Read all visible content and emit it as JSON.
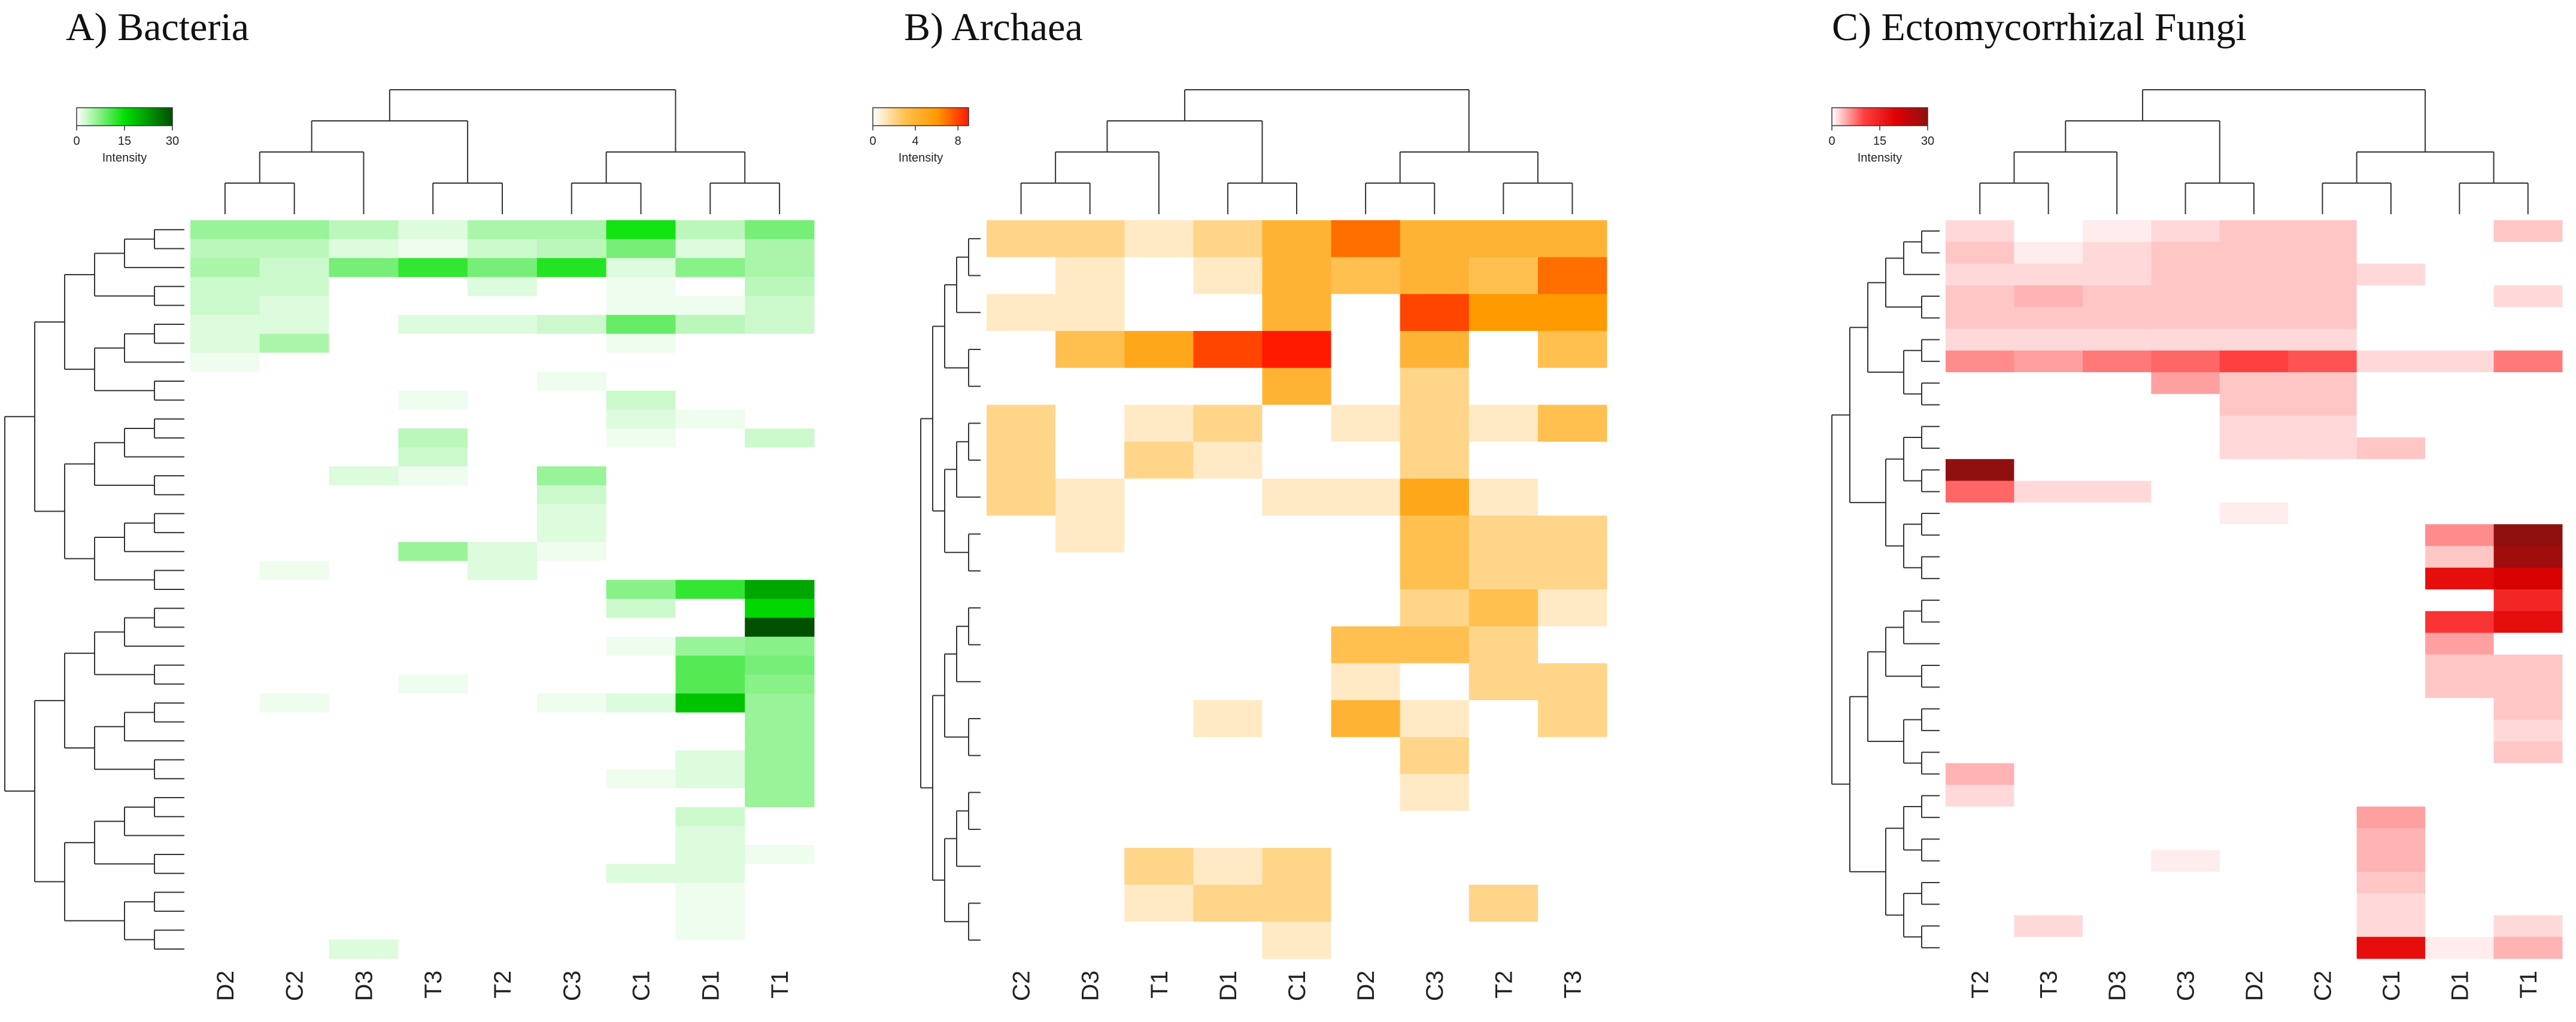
{
  "panels": [
    {
      "id": "bacteria",
      "title": "A) Bacteria",
      "legend": {
        "title": "Intensity",
        "ticks": [
          "0",
          "15",
          "30"
        ],
        "max": 30,
        "colors": [
          "#ffffff",
          "#00e000",
          "#005000"
        ]
      },
      "columns": [
        "D2",
        "C2",
        "D3",
        "T3",
        "T2",
        "C3",
        "C1",
        "D1",
        "T1"
      ]
    },
    {
      "id": "archaea",
      "title": "B) Archaea",
      "legend": {
        "title": "Intensity",
        "ticks": [
          "0",
          "4",
          "8"
        ],
        "max": 9,
        "colors": [
          "#ffffff",
          "#ffc050",
          "#ff9a00",
          "#ff1a00"
        ]
      },
      "columns": [
        "C2",
        "D3",
        "T1",
        "D1",
        "C1",
        "D2",
        "C3",
        "T2",
        "T3"
      ]
    },
    {
      "id": "ecto",
      "title": "C) Ectomycorrhizal Fungi",
      "legend": {
        "title": "Intensity",
        "ticks": [
          "0",
          "15",
          "30"
        ],
        "max": 30,
        "colors": [
          "#ffffff",
          "#ff4040",
          "#e00000",
          "#901010"
        ]
      },
      "columns": [
        "T2",
        "T3",
        "D3",
        "C3",
        "D2",
        "C2",
        "C1",
        "D1",
        "T1"
      ]
    }
  ],
  "chart_data": [
    {
      "type": "heatmap",
      "title": "A) Bacteria",
      "columns": [
        "D2",
        "C2",
        "D3",
        "T3",
        "T2",
        "C3",
        "C1",
        "D1",
        "T1"
      ],
      "legend_title": "Intensity",
      "color_scale": {
        "min": 0,
        "max": 30,
        "ticks": [
          0,
          15,
          30
        ]
      },
      "values": [
        [
          6,
          6,
          4,
          2,
          5,
          5,
          14,
          4,
          8
        ],
        [
          4,
          4,
          2,
          1,
          3,
          4,
          8,
          2,
          5
        ],
        [
          5,
          3,
          8,
          12,
          8,
          13,
          2,
          7,
          5
        ],
        [
          3,
          3,
          0,
          0,
          2,
          0,
          1,
          0,
          4
        ],
        [
          3,
          2,
          0,
          0,
          0,
          0,
          1,
          1,
          3
        ],
        [
          2,
          2,
          0,
          2,
          2,
          3,
          9,
          4,
          3
        ],
        [
          2,
          5,
          0,
          0,
          0,
          0,
          1,
          0,
          0
        ],
        [
          1,
          0,
          0,
          0,
          0,
          0,
          0,
          0,
          0
        ],
        [
          0,
          0,
          0,
          0,
          0,
          1,
          0,
          0,
          0
        ],
        [
          0,
          0,
          0,
          1,
          0,
          0,
          3,
          0,
          0
        ],
        [
          0,
          0,
          0,
          0,
          0,
          0,
          2,
          1,
          0
        ],
        [
          0,
          0,
          0,
          4,
          0,
          0,
          1,
          0,
          3
        ],
        [
          0,
          0,
          0,
          3,
          0,
          0,
          0,
          0,
          0
        ],
        [
          0,
          0,
          2,
          1,
          0,
          6,
          0,
          0,
          0
        ],
        [
          0,
          0,
          0,
          0,
          0,
          3,
          0,
          0,
          0
        ],
        [
          0,
          0,
          0,
          0,
          0,
          2,
          0,
          0,
          0
        ],
        [
          0,
          0,
          0,
          0,
          0,
          2,
          0,
          0,
          0
        ],
        [
          0,
          0,
          0,
          6,
          2,
          1,
          0,
          0,
          0
        ],
        [
          0,
          1,
          0,
          0,
          2,
          0,
          0,
          0,
          0
        ],
        [
          0,
          0,
          0,
          0,
          0,
          0,
          7,
          12,
          21
        ],
        [
          0,
          0,
          0,
          0,
          0,
          0,
          3,
          0,
          16
        ],
        [
          0,
          0,
          0,
          0,
          0,
          0,
          0,
          0,
          32
        ],
        [
          0,
          0,
          0,
          0,
          0,
          0,
          1,
          6,
          7
        ],
        [
          0,
          0,
          0,
          0,
          0,
          0,
          0,
          10,
          8
        ],
        [
          0,
          0,
          0,
          1,
          0,
          0,
          0,
          10,
          7
        ],
        [
          0,
          1,
          0,
          0,
          0,
          1,
          2,
          18,
          6
        ],
        [
          0,
          0,
          0,
          0,
          0,
          0,
          0,
          0,
          6
        ],
        [
          0,
          0,
          0,
          0,
          0,
          0,
          0,
          0,
          6
        ],
        [
          0,
          0,
          0,
          0,
          0,
          0,
          0,
          2,
          6
        ],
        [
          0,
          0,
          0,
          0,
          0,
          0,
          1,
          2,
          6
        ],
        [
          0,
          0,
          0,
          0,
          0,
          0,
          0,
          0,
          6
        ],
        [
          0,
          0,
          0,
          0,
          0,
          0,
          0,
          3,
          0
        ],
        [
          0,
          0,
          0,
          0,
          0,
          0,
          0,
          2,
          0
        ],
        [
          0,
          0,
          0,
          0,
          0,
          0,
          0,
          2,
          1
        ],
        [
          0,
          0,
          0,
          0,
          0,
          0,
          2,
          2,
          0
        ],
        [
          0,
          0,
          0,
          0,
          0,
          0,
          0,
          1,
          0
        ],
        [
          0,
          0,
          0,
          0,
          0,
          0,
          0,
          1,
          0
        ],
        [
          0,
          0,
          0,
          0,
          0,
          0,
          0,
          1,
          0
        ],
        [
          0,
          0,
          2,
          0,
          0,
          0,
          0,
          0,
          0
        ]
      ]
    },
    {
      "type": "heatmap",
      "title": "B) Archaea",
      "columns": [
        "C2",
        "D3",
        "T1",
        "D1",
        "C1",
        "D2",
        "C3",
        "T2",
        "T3"
      ],
      "legend_title": "Intensity",
      "color_scale": {
        "min": 0,
        "max": 9,
        "ticks": [
          0,
          4,
          8
        ]
      },
      "values": [
        [
          2,
          2,
          1,
          2,
          4,
          7,
          4,
          4,
          4
        ],
        [
          0,
          1,
          0,
          1,
          4,
          3,
          4,
          3,
          7
        ],
        [
          1,
          1,
          0,
          0,
          4,
          0,
          8,
          6,
          6
        ],
        [
          0,
          3,
          5,
          8,
          9,
          0,
          4,
          0,
          3
        ],
        [
          0,
          0,
          0,
          0,
          4,
          0,
          2,
          0,
          0
        ],
        [
          2,
          0,
          1,
          2,
          0,
          1,
          2,
          1,
          3
        ],
        [
          2,
          0,
          2,
          1,
          0,
          0,
          2,
          0,
          0
        ],
        [
          2,
          1,
          0,
          0,
          1,
          1,
          5,
          1,
          0
        ],
        [
          0,
          1,
          0,
          0,
          0,
          0,
          3,
          2,
          2
        ],
        [
          0,
          0,
          0,
          0,
          0,
          0,
          3,
          2,
          2
        ],
        [
          0,
          0,
          0,
          0,
          0,
          0,
          2,
          3,
          1
        ],
        [
          0,
          0,
          0,
          0,
          0,
          3,
          3,
          2,
          0
        ],
        [
          0,
          0,
          0,
          0,
          0,
          1,
          0,
          2,
          2
        ],
        [
          0,
          0,
          0,
          1,
          0,
          4,
          1,
          0,
          2
        ],
        [
          0,
          0,
          0,
          0,
          0,
          0,
          2,
          0,
          0
        ],
        [
          0,
          0,
          0,
          0,
          0,
          0,
          1,
          0,
          0
        ],
        [
          0,
          0,
          0,
          0,
          0,
          0,
          0,
          0,
          0
        ],
        [
          0,
          0,
          2,
          1,
          2,
          0,
          0,
          0,
          0
        ],
        [
          0,
          0,
          1,
          2,
          2,
          0,
          0,
          2,
          0
        ],
        [
          0,
          0,
          0,
          0,
          1,
          0,
          0,
          0,
          0
        ]
      ]
    },
    {
      "type": "heatmap",
      "title": "C) Ectomycorrhizal Fungi",
      "columns": [
        "T2",
        "T3",
        "D3",
        "C3",
        "D2",
        "C2",
        "C1",
        "D1",
        "T1"
      ],
      "legend_title": "Intensity",
      "color_scale": {
        "min": 0,
        "max": 30,
        "ticks": [
          0,
          15,
          30
        ]
      },
      "values": [
        [
          2,
          0,
          1,
          2,
          3,
          3,
          0,
          0,
          3
        ],
        [
          3,
          1,
          2,
          3,
          3,
          3,
          0,
          0,
          0
        ],
        [
          2,
          2,
          2,
          3,
          3,
          3,
          2,
          0,
          0
        ],
        [
          3,
          4,
          3,
          3,
          3,
          3,
          0,
          0,
          2
        ],
        [
          3,
          3,
          3,
          3,
          3,
          3,
          0,
          0,
          0
        ],
        [
          2,
          2,
          2,
          2,
          2,
          2,
          0,
          0,
          0
        ],
        [
          6,
          5,
          7,
          8,
          10,
          9,
          2,
          2,
          7
        ],
        [
          0,
          0,
          0,
          5,
          3,
          3,
          0,
          0,
          0
        ],
        [
          0,
          0,
          0,
          0,
          3,
          3,
          0,
          0,
          0
        ],
        [
          0,
          0,
          0,
          0,
          2,
          2,
          0,
          0,
          0
        ],
        [
          0,
          0,
          0,
          0,
          2,
          2,
          3,
          0,
          0
        ],
        [
          30,
          0,
          0,
          0,
          0,
          0,
          0,
          0,
          0
        ],
        [
          8,
          2,
          2,
          0,
          0,
          0,
          0,
          0,
          0
        ],
        [
          0,
          0,
          0,
          0,
          1,
          0,
          0,
          0,
          0
        ],
        [
          0,
          0,
          0,
          0,
          0,
          0,
          0,
          6,
          32
        ],
        [
          0,
          0,
          0,
          0,
          0,
          0,
          0,
          3,
          28
        ],
        [
          0,
          0,
          0,
          0,
          0,
          0,
          0,
          18,
          21
        ],
        [
          0,
          0,
          0,
          0,
          0,
          0,
          0,
          0,
          14
        ],
        [
          0,
          0,
          0,
          0,
          0,
          0,
          0,
          12,
          18
        ],
        [
          0,
          0,
          0,
          0,
          0,
          0,
          0,
          5,
          0
        ],
        [
          0,
          0,
          0,
          0,
          0,
          0,
          0,
          3,
          3
        ],
        [
          0,
          0,
          0,
          0,
          0,
          0,
          0,
          3,
          3
        ],
        [
          0,
          0,
          0,
          0,
          0,
          0,
          0,
          0,
          3
        ],
        [
          0,
          0,
          0,
          0,
          0,
          0,
          0,
          0,
          2
        ],
        [
          0,
          0,
          0,
          0,
          0,
          0,
          0,
          0,
          3
        ],
        [
          4,
          0,
          0,
          0,
          0,
          0,
          0,
          0,
          0
        ],
        [
          2,
          0,
          0,
          0,
          0,
          0,
          0,
          0,
          0
        ],
        [
          0,
          0,
          0,
          0,
          0,
          0,
          5,
          0,
          0
        ],
        [
          0,
          0,
          0,
          0,
          0,
          0,
          4,
          0,
          0
        ],
        [
          0,
          0,
          0,
          1,
          0,
          0,
          4,
          0,
          0
        ],
        [
          0,
          0,
          0,
          0,
          0,
          0,
          3,
          0,
          0
        ],
        [
          0,
          0,
          0,
          0,
          0,
          0,
          2,
          0,
          0
        ],
        [
          0,
          2,
          0,
          0,
          0,
          0,
          2,
          0,
          2
        ],
        [
          0,
          0,
          0,
          0,
          0,
          0,
          18,
          1,
          4
        ]
      ]
    }
  ]
}
